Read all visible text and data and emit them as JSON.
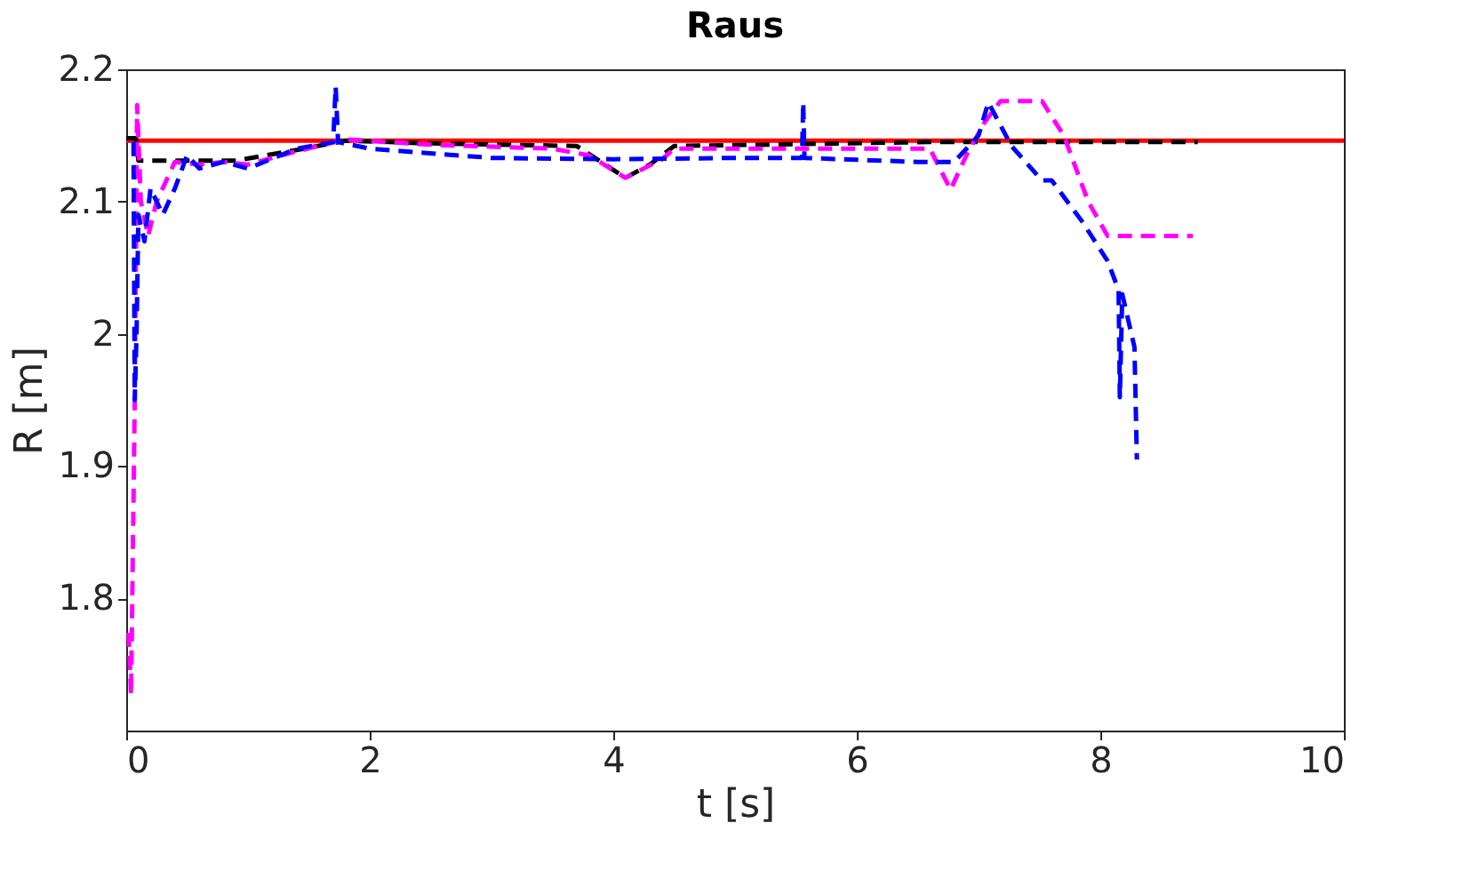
{
  "chart_data": {
    "type": "line",
    "title": "Raus",
    "xlabel": "t [s]",
    "ylabel": "R [m]",
    "xlim": [
      0,
      10
    ],
    "xticks": [
      0,
      2,
      4,
      6,
      8,
      10
    ],
    "ylim": [
      1.7,
      2.2
    ],
    "yticks": [
      1.8,
      1.9,
      2,
      2.1,
      2.2
    ],
    "grid": false,
    "legend": false,
    "series": [
      {
        "color": "#ff0000",
        "line_style": "solid",
        "x": [
          0,
          10
        ],
        "values": [
          2.146,
          2.146
        ]
      },
      {
        "color": "#000000",
        "line_style": "dashed",
        "x": [
          0,
          0.08,
          0.1,
          0.9,
          1.4,
          1.8,
          2.5,
          3.7,
          3.9,
          4.1,
          4.3,
          4.5,
          6.6,
          8.8
        ],
        "values": [
          2.148,
          2.148,
          2.131,
          2.131,
          2.139,
          2.146,
          2.144,
          2.142,
          2.13,
          2.118,
          2.128,
          2.142,
          2.145,
          2.145
        ]
      },
      {
        "color": "#ff00ff",
        "line_style": "dashed",
        "x": [
          0.02,
          0.04,
          0.07,
          0.09,
          0.12,
          0.18,
          0.25,
          0.4,
          0.6,
          0.8,
          1.0,
          1.4,
          1.8,
          2.5,
          3.5,
          3.8,
          4.1,
          4.4,
          4.5,
          6.6,
          6.77,
          6.9,
          7.05,
          7.18,
          7.52,
          7.7,
          7.9,
          8.06,
          8.76
        ],
        "values": [
          1.774,
          1.727,
          1.95,
          2.173,
          2.1,
          2.074,
          2.1,
          2.13,
          2.128,
          2.13,
          2.128,
          2.138,
          2.147,
          2.143,
          2.14,
          2.135,
          2.118,
          2.132,
          2.14,
          2.14,
          2.109,
          2.135,
          2.16,
          2.176,
          2.176,
          2.15,
          2.1,
          2.074,
          2.074
        ]
      },
      {
        "color": "#0000ff",
        "line_style": "dashed",
        "x": [
          0.06,
          0.07,
          0.085,
          0.1,
          0.15,
          0.2,
          0.3,
          0.4,
          0.5,
          0.6,
          0.8,
          1.0,
          1.4,
          1.7,
          1.72,
          1.74,
          2,
          3,
          4,
          5,
          5.55,
          5.56,
          5.57,
          6.5,
          6.8,
          7.0,
          7.08,
          7.27,
          7.52,
          7.6,
          7.85,
          8.06,
          8.15,
          8.16,
          8.18,
          8.28,
          8.3
        ],
        "values": [
          2.145,
          1.95,
          2.0,
          2.09,
          2.07,
          2.11,
          2.09,
          2.11,
          2.135,
          2.125,
          2.13,
          2.125,
          2.14,
          2.145,
          2.187,
          2.145,
          2.14,
          2.133,
          2.132,
          2.133,
          2.133,
          2.175,
          2.133,
          2.13,
          2.13,
          2.15,
          2.175,
          2.142,
          2.116,
          2.116,
          2.085,
          2.055,
          2.033,
          1.952,
          2.03,
          1.99,
          1.905
        ]
      }
    ]
  }
}
